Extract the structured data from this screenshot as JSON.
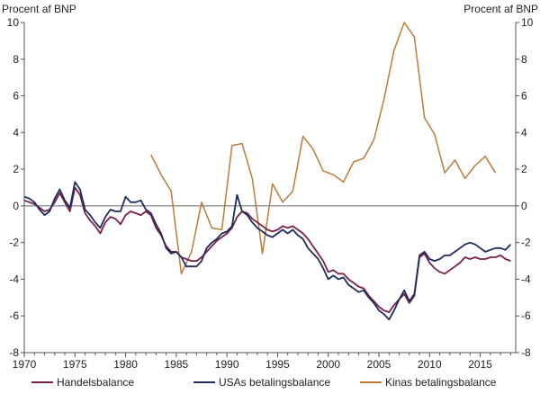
{
  "chart_data": {
    "type": "line",
    "unit_left": "Procent af BNP",
    "unit_right": "Procent af BNP",
    "ylim": [
      -8,
      10
    ],
    "xlim": [
      1970,
      2018.5
    ],
    "y_ticks": [
      "10",
      "8",
      "6",
      "4",
      "2",
      "0",
      "-2",
      "-4",
      "-6",
      "-8"
    ],
    "x_ticks": [
      "1970",
      "1975",
      "1980",
      "1985",
      "1990",
      "1995",
      "2000",
      "2005",
      "2010",
      "2015"
    ],
    "grid": false,
    "legend_position": "bottom",
    "series": [
      {
        "name": "Handelsbalance",
        "color": "#7a1f4a",
        "x": [
          1970,
          1970.5,
          1971,
          1971.5,
          1972,
          1972.5,
          1973,
          1973.5,
          1974,
          1974.5,
          1975,
          1975.5,
          1976,
          1976.5,
          1977,
          1977.5,
          1978,
          1978.5,
          1979,
          1979.5,
          1980,
          1980.5,
          1981,
          1981.5,
          1982,
          1982.5,
          1983,
          1983.5,
          1984,
          1984.5,
          1985,
          1985.5,
          1986,
          1986.5,
          1987,
          1987.5,
          1988,
          1988.5,
          1989,
          1989.5,
          1990,
          1990.5,
          1991,
          1991.5,
          1992,
          1992.5,
          1993,
          1993.5,
          1994,
          1994.5,
          1995,
          1995.5,
          1996,
          1996.5,
          1997,
          1997.5,
          1998,
          1998.5,
          1999,
          1999.5,
          2000,
          2000.5,
          2001,
          2001.5,
          2002,
          2002.5,
          2003,
          2003.5,
          2004,
          2004.5,
          2005,
          2005.5,
          2006,
          2006.5,
          2007,
          2007.5,
          2008,
          2008.5,
          2009,
          2009.5,
          2010,
          2010.5,
          2011,
          2011.5,
          2012,
          2012.5,
          2013,
          2013.5,
          2014,
          2014.5,
          2015,
          2015.5,
          2016,
          2016.5,
          2017,
          2017.5,
          2018
        ],
        "values": [
          0.3,
          0.2,
          0.1,
          -0.1,
          -0.3,
          -0.2,
          0.2,
          0.7,
          0.2,
          -0.3,
          1.0,
          0.6,
          -0.4,
          -0.8,
          -1.1,
          -1.5,
          -0.9,
          -0.6,
          -0.7,
          -1.0,
          -0.5,
          -0.3,
          -0.4,
          -0.5,
          -0.3,
          -0.5,
          -1.2,
          -1.6,
          -2.2,
          -2.5,
          -2.5,
          -2.8,
          -2.9,
          -3.0,
          -3.0,
          -2.8,
          -2.5,
          -2.2,
          -1.9,
          -1.7,
          -1.5,
          -1.2,
          -0.6,
          -0.3,
          -0.4,
          -0.7,
          -0.9,
          -1.1,
          -1.3,
          -1.4,
          -1.3,
          -1.1,
          -1.2,
          -1.1,
          -1.3,
          -1.5,
          -1.8,
          -2.2,
          -2.6,
          -3.0,
          -3.6,
          -3.5,
          -3.7,
          -3.7,
          -4.0,
          -4.2,
          -4.4,
          -4.5,
          -4.9,
          -5.2,
          -5.5,
          -5.7,
          -5.8,
          -5.4,
          -5.1,
          -4.8,
          -5.3,
          -4.9,
          -2.8,
          -2.6,
          -3.1,
          -3.4,
          -3.6,
          -3.7,
          -3.5,
          -3.3,
          -3.1,
          -2.8,
          -2.9,
          -2.8,
          -2.9,
          -2.9,
          -2.8,
          -2.8,
          -2.7,
          -2.9,
          -3.0
        ]
      },
      {
        "name": "USAs betalingsbalance",
        "color": "#1f2d5c",
        "x": [
          1970,
          1970.5,
          1971,
          1971.5,
          1972,
          1972.5,
          1973,
          1973.5,
          1974,
          1974.5,
          1975,
          1975.5,
          1976,
          1976.5,
          1977,
          1977.5,
          1978,
          1978.5,
          1979,
          1979.5,
          1980,
          1980.5,
          1981,
          1981.5,
          1982,
          1982.5,
          1983,
          1983.5,
          1984,
          1984.5,
          1985,
          1985.5,
          1986,
          1986.5,
          1987,
          1987.5,
          1988,
          1988.5,
          1989,
          1989.5,
          1990,
          1990.5,
          1991,
          1991.5,
          1992,
          1992.5,
          1993,
          1993.5,
          1994,
          1994.5,
          1995,
          1995.5,
          1996,
          1996.5,
          1997,
          1997.5,
          1998,
          1998.5,
          1999,
          1999.5,
          2000,
          2000.5,
          2001,
          2001.5,
          2002,
          2002.5,
          2003,
          2003.5,
          2004,
          2004.5,
          2005,
          2005.5,
          2006,
          2006.5,
          2007,
          2007.5,
          2008,
          2008.5,
          2009,
          2009.5,
          2010,
          2010.5,
          2011,
          2011.5,
          2012,
          2012.5,
          2013,
          2013.5,
          2014,
          2014.5,
          2015,
          2015.5,
          2016,
          2016.5,
          2017,
          2017.5,
          2018
        ],
        "values": [
          0.5,
          0.4,
          0.2,
          -0.2,
          -0.5,
          -0.3,
          0.4,
          0.9,
          0.3,
          -0.1,
          1.3,
          0.9,
          -0.2,
          -0.5,
          -0.9,
          -1.2,
          -0.6,
          -0.2,
          -0.3,
          -0.3,
          0.5,
          0.2,
          0.2,
          0.3,
          -0.2,
          -0.4,
          -1.0,
          -1.5,
          -2.3,
          -2.6,
          -2.5,
          -2.8,
          -3.3,
          -3.3,
          -3.3,
          -3.0,
          -2.3,
          -2.0,
          -1.8,
          -1.5,
          -1.4,
          -1.1,
          0.6,
          -0.3,
          -0.5,
          -0.9,
          -1.2,
          -1.4,
          -1.6,
          -1.7,
          -1.5,
          -1.3,
          -1.5,
          -1.3,
          -1.6,
          -1.8,
          -2.3,
          -2.6,
          -2.9,
          -3.4,
          -4.0,
          -3.8,
          -4.0,
          -3.9,
          -4.3,
          -4.5,
          -4.7,
          -4.6,
          -5.0,
          -5.3,
          -5.7,
          -5.9,
          -6.2,
          -5.7,
          -5.1,
          -4.6,
          -5.2,
          -4.8,
          -2.7,
          -2.5,
          -2.9,
          -3.0,
          -2.9,
          -2.7,
          -2.7,
          -2.5,
          -2.3,
          -2.1,
          -2.0,
          -2.1,
          -2.3,
          -2.5,
          -2.4,
          -2.3,
          -2.3,
          -2.4,
          -2.1
        ]
      },
      {
        "name": "Kinas betalingsbalance",
        "color": "#c07a3a",
        "x": [
          1982.5,
          1983.5,
          1984.5,
          1985.5,
          1986.5,
          1987.5,
          1988.5,
          1989.5,
          1990.5,
          1991.5,
          1992.5,
          1993.5,
          1994.5,
          1995.5,
          1996.5,
          1997.5,
          1998.5,
          1999.5,
          2000.5,
          2001.5,
          2002.5,
          2003.5,
          2004.5,
          2005.5,
          2006.5,
          2007.5,
          2008.5,
          2009.5,
          2010.5,
          2011.5,
          2012.5,
          2013.5,
          2014.5,
          2015.5,
          2016.5
        ],
        "values": [
          2.8,
          1.7,
          0.8,
          -3.7,
          -2.5,
          0.2,
          -1.2,
          -1.3,
          3.3,
          3.4,
          1.5,
          -2.6,
          1.2,
          0.2,
          0.8,
          3.8,
          3.1,
          1.9,
          1.7,
          1.3,
          2.4,
          2.6,
          3.6,
          5.8,
          8.5,
          10.0,
          9.2,
          4.8,
          3.9,
          1.8,
          2.5,
          1.5,
          2.2,
          2.7,
          1.8
        ]
      }
    ]
  }
}
